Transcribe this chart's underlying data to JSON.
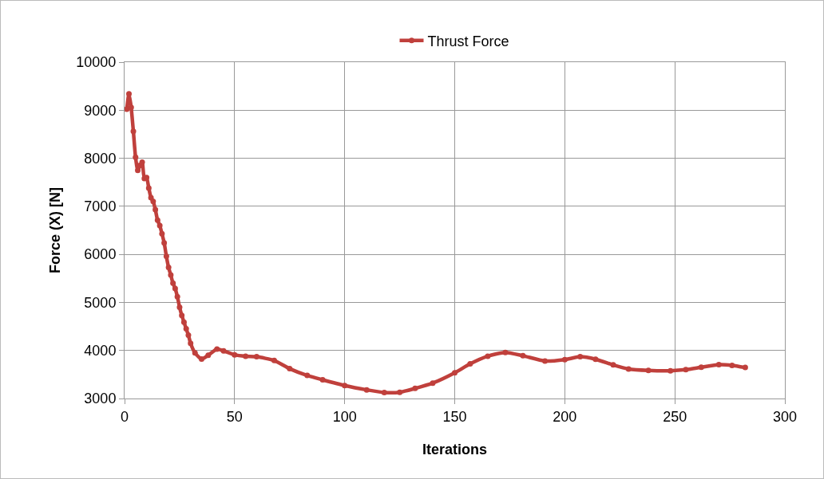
{
  "chart_data": {
    "type": "line",
    "xlabel": "Iterations",
    "ylabel": "Force (X) [N]",
    "xlim": [
      0,
      300
    ],
    "xticks": [
      0,
      50,
      100,
      150,
      200,
      250,
      300
    ],
    "ylim": [
      3000,
      10000
    ],
    "yticks": [
      3000,
      4000,
      5000,
      6000,
      7000,
      8000,
      9000,
      10000
    ],
    "grid": true,
    "legend": "top",
    "marker": "circle",
    "line_style": "solid",
    "series": [
      {
        "name": "Thrust Force",
        "color": "#c0403c",
        "x": [
          1,
          2,
          3,
          4,
          5,
          6,
          7,
          8,
          9,
          10,
          11,
          12,
          13,
          14,
          15,
          16,
          17,
          18,
          19,
          20,
          21,
          22,
          23,
          24,
          25,
          26,
          27,
          28,
          29,
          30,
          32,
          35,
          38,
          42,
          45,
          50,
          55,
          60,
          68,
          75,
          83,
          90,
          100,
          110,
          118,
          125,
          132,
          140,
          150,
          157,
          165,
          173,
          181,
          191,
          200,
          207,
          214,
          222,
          229,
          238,
          248,
          255,
          262,
          270,
          276,
          282
        ],
        "values": [
          9020,
          9340,
          9060,
          8560,
          8020,
          7750,
          7850,
          7920,
          7580,
          7600,
          7380,
          7180,
          7100,
          6930,
          6710,
          6600,
          6430,
          6240,
          5960,
          5730,
          5570,
          5400,
          5290,
          5120,
          4900,
          4730,
          4590,
          4450,
          4320,
          4150,
          3950,
          3820,
          3900,
          4030,
          3990,
          3910,
          3880,
          3870,
          3790,
          3620,
          3480,
          3390,
          3270,
          3180,
          3125,
          3130,
          3210,
          3320,
          3535,
          3720,
          3880,
          3960,
          3890,
          3780,
          3810,
          3869,
          3818,
          3700,
          3615,
          3585,
          3578,
          3600,
          3650,
          3705,
          3690,
          3645
        ]
      }
    ]
  }
}
